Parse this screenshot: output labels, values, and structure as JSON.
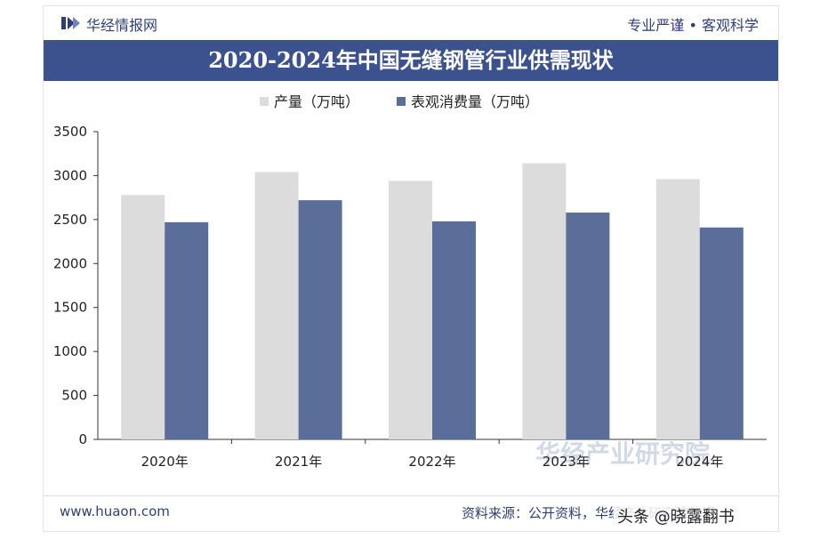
{
  "header": {
    "logo_text": "华经情报网",
    "slogan": "专业严谨 • 客观科学"
  },
  "chart_data": {
    "type": "bar",
    "title": "2020-2024年中国无缝钢管行业供需现状",
    "categories": [
      "2020年",
      "2021年",
      "2022年",
      "2023年",
      "2024年"
    ],
    "series": [
      {
        "name": "产量（万吨）",
        "values": [
          2780,
          3040,
          2940,
          3140,
          2960
        ],
        "color": "#dcdcdc"
      },
      {
        "name": "表观消费量（万吨）",
        "values": [
          2470,
          2720,
          2480,
          2580,
          2410
        ],
        "color": "#5b6e9a"
      }
    ],
    "ylim": [
      0,
      3500
    ],
    "yticks": [
      "0",
      "500",
      "1000",
      "1500",
      "2000",
      "2500",
      "3000",
      "3500"
    ],
    "grid": false,
    "legend_position": "top-center"
  },
  "footer": {
    "site": "www.huaon.com",
    "source": "资料来源：公开资料，华经产业研究院整理"
  },
  "overlay": {
    "center_watermark": "华经产业研究院",
    "corner_watermark": "头条 @晓露翻书"
  },
  "colors": {
    "brand": "#2f3f74",
    "title_band": "#3b528e"
  }
}
